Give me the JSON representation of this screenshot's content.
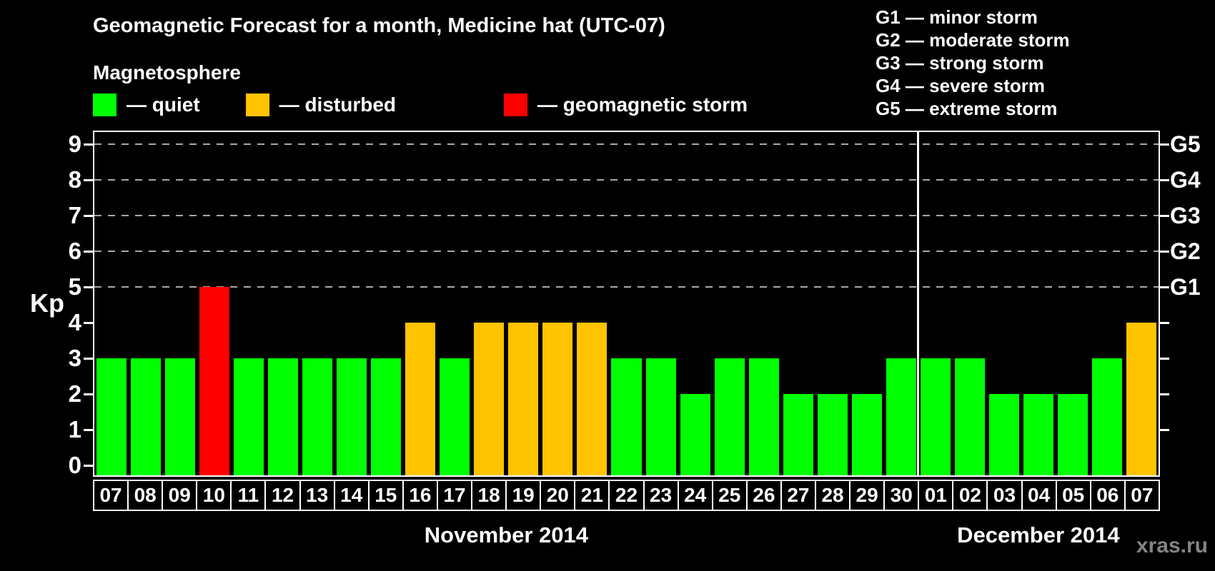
{
  "title": "Geomagnetic Forecast for a month, Medicine hat (UTC-07)",
  "magnetosphere_label": "Magnetosphere",
  "status_colors": {
    "quiet": "#00ff00",
    "disturbed": "#ffc300",
    "storm": "#ff0000"
  },
  "legend": {
    "items": [
      {
        "label": "— quiet",
        "status": "quiet"
      },
      {
        "label": "— disturbed",
        "status": "disturbed"
      },
      {
        "label": "— geomagnetic storm",
        "status": "storm"
      }
    ]
  },
  "g_scale_legend": [
    "G1 — minor storm",
    "G2 — moderate storm",
    "G3 — strong storm",
    "G4 — severe storm",
    "G5 — extreme storm"
  ],
  "y_axis": {
    "label": "Kp",
    "ticks": [
      "0",
      "1",
      "2",
      "3",
      "4",
      "5",
      "6",
      "7",
      "8",
      "9"
    ]
  },
  "right_axis": {
    "labels": [
      {
        "text": "G1",
        "kp": 5
      },
      {
        "text": "G2",
        "kp": 6
      },
      {
        "text": "G3",
        "kp": 7
      },
      {
        "text": "G4",
        "kp": 8
      },
      {
        "text": "G5",
        "kp": 9
      }
    ]
  },
  "chart_data": {
    "type": "bar",
    "title": "Geomagnetic Forecast for a month, Medicine hat (UTC-07)",
    "ylabel": "Kp",
    "ylim": [
      0,
      9.5
    ],
    "grid": "dashed horizontal at Kp 5-9",
    "gridlines_at": [
      5,
      6,
      7,
      8,
      9
    ],
    "categories": [
      "07",
      "08",
      "09",
      "10",
      "11",
      "12",
      "13",
      "14",
      "15",
      "16",
      "17",
      "18",
      "19",
      "20",
      "21",
      "22",
      "23",
      "24",
      "25",
      "26",
      "27",
      "28",
      "29",
      "30",
      "01",
      "02",
      "03",
      "04",
      "05",
      "06",
      "07"
    ],
    "values": [
      3,
      3,
      3,
      5,
      3,
      3,
      3,
      3,
      3,
      4,
      3,
      4,
      4,
      4,
      4,
      3,
      3,
      2,
      3,
      3,
      2,
      2,
      2,
      3,
      3,
      3,
      2,
      2,
      2,
      3,
      4
    ],
    "statuses": [
      "quiet",
      "quiet",
      "quiet",
      "storm",
      "quiet",
      "quiet",
      "quiet",
      "quiet",
      "quiet",
      "disturbed",
      "quiet",
      "disturbed",
      "disturbed",
      "disturbed",
      "disturbed",
      "quiet",
      "quiet",
      "quiet",
      "quiet",
      "quiet",
      "quiet",
      "quiet",
      "quiet",
      "quiet",
      "quiet",
      "quiet",
      "quiet",
      "quiet",
      "quiet",
      "quiet",
      "disturbed"
    ],
    "months": [
      {
        "label": "November 2014",
        "days": 24
      },
      {
        "label": "December 2014",
        "days": 7
      }
    ]
  },
  "watermark": "xras.ru"
}
